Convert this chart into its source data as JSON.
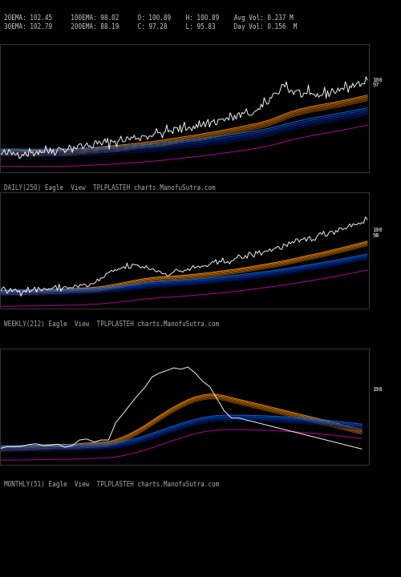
{
  "bg_color": "#000000",
  "title_color": "#cccccc",
  "chart_bg": "#000000",
  "header_lines": [
    "20EMA: 102.45     100EMA: 98.02     O: 100.89    H: 100.89    Avg Vol: 0.237 M",
    "30EMA: 102.79     200EMA: 88.19     C: 97.28     L: 95.83     Day Vol: 0.156  M"
  ],
  "panel_labels": [
    "DAILY(250) Eagle  View  TPLPLASTEH charts.ManofuSutra.com",
    "WEEKLY(212) Eagle  View  TPLPLASTEH charts.ManofuSutra.com",
    "MONTHLY(51) Eagle  View  TPLPLASTEH charts.ManofuSutra.com"
  ],
  "price_label_daily": "100\n97",
  "price_label_weekly": "100\n98",
  "price_label_monthly": "198",
  "ema_colors": [
    "#ff6600",
    "#ff8800",
    "#ffaa00",
    "#ffcc00",
    "#0044ff",
    "#0066ff",
    "#0088ff",
    "#00aaff",
    "#cc00cc",
    "#ff00ff",
    "#ffffff"
  ],
  "orange_color": "#cc5500",
  "blue_color": "#1144cc",
  "magenta_color": "#cc00aa",
  "white_color": "#ffffff",
  "n_daily": 250,
  "n_weekly": 212,
  "n_monthly": 51
}
